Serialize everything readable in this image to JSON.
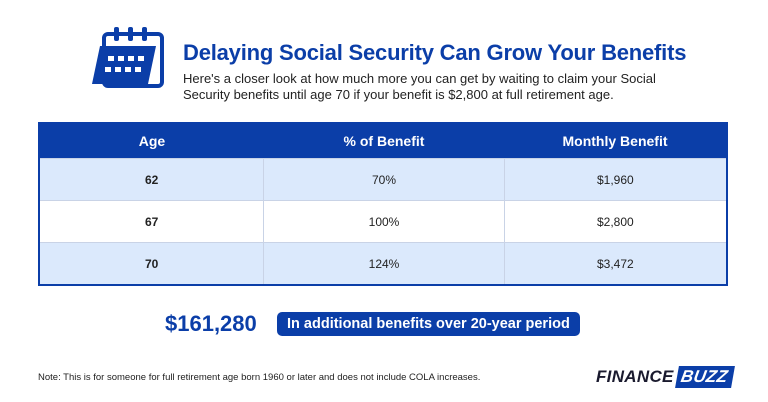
{
  "header": {
    "title": "Delaying Social Security Can Grow Your Benefits",
    "subtitle": "Here's a closer look at how much more you can get by waiting to claim your Social Security benefits until age 70 if your benefit is $2,800 at full retirement age."
  },
  "table": {
    "columns": [
      "Age",
      "% of Benefit",
      "Monthly Benefit"
    ],
    "rows": [
      [
        "62",
        "70%",
        "$1,960"
      ],
      [
        "67",
        "100%",
        "$2,800"
      ],
      [
        "70",
        "124%",
        "$3,472"
      ]
    ]
  },
  "summary": {
    "amount": "$161,280",
    "label": "In additional benefits over 20-year period"
  },
  "footer": {
    "note": "Note: This is for someone for full retirement age born 1960 or later and does not include COLA increases."
  },
  "logo": {
    "part1": "FINANCE",
    "part2": "BUZZ"
  },
  "colors": {
    "primary": "#0b3ea8",
    "row_alt": "#dbe9fc"
  },
  "icons": {
    "header_icon": "calendar-icon"
  }
}
